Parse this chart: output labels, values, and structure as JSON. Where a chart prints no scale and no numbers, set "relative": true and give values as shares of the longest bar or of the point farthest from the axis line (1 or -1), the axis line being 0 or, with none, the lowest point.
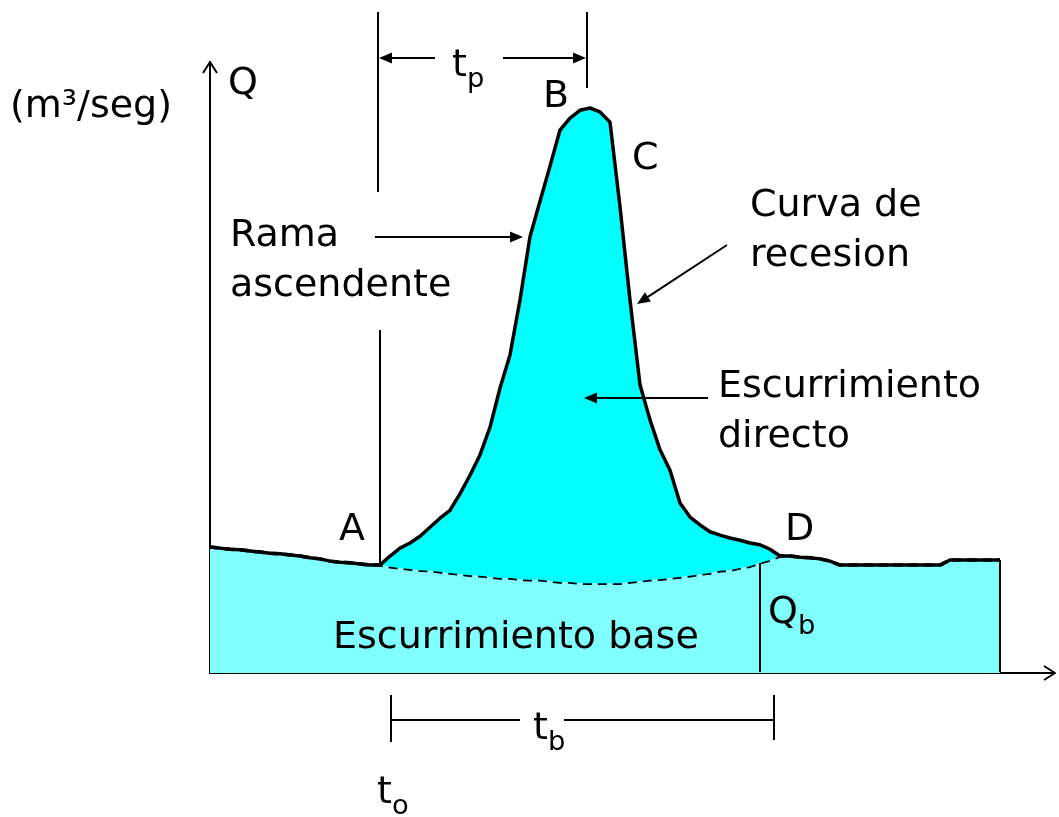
{
  "chart_data": {
    "type": "area",
    "relative": true,
    "stacked": true,
    "ylabel": "Q",
    "categories": [
      null,
      null,
      null,
      null,
      null,
      null,
      null,
      null,
      null,
      null,
      null,
      null,
      null,
      null,
      null,
      null,
      null,
      null,
      null,
      null,
      null,
      null,
      null,
      null,
      null,
      null,
      null,
      null,
      null,
      null,
      null,
      null,
      null,
      null,
      null,
      null,
      null,
      null,
      null,
      null,
      null,
      null,
      null,
      null,
      null,
      null,
      null,
      null,
      null,
      null,
      null,
      null,
      null,
      null,
      null,
      null,
      null,
      null,
      null,
      null,
      null,
      null,
      null,
      null,
      null,
      null,
      null,
      null,
      null,
      null,
      null,
      null,
      null,
      null,
      null,
      null,
      null,
      null,
      null,
      null,
      null,
      null,
      null,
      null,
      null
    ],
    "series": [
      {
        "name": "Escurrimiento base",
        "color": "#80ffff",
        "line_style": "dashed",
        "values": [
          0.223,
          0.221,
          0.219,
          0.218,
          0.216,
          0.214,
          0.212,
          0.211,
          0.209,
          0.207,
          0.204,
          0.202,
          0.198,
          0.196,
          0.195,
          0.193,
          0.191,
          0.191,
          0.188,
          0.186,
          0.184,
          0.182,
          0.181,
          0.179,
          0.177,
          0.175,
          0.173,
          0.172,
          0.17,
          0.168,
          0.168,
          0.166,
          0.165,
          0.165,
          0.163,
          0.161,
          0.161,
          0.159,
          0.159,
          0.159,
          0.159,
          0.159,
          0.161,
          0.163,
          0.165,
          0.166,
          0.168,
          0.17,
          0.172,
          0.175,
          0.177,
          0.181,
          0.182,
          0.186,
          0.189,
          0.195,
          0.2,
          0.207,
          0.207,
          0.205,
          0.204,
          0.202,
          0.198,
          0.191,
          0.191,
          0.191,
          0.191,
          0.191,
          0.191,
          0.191,
          0.191,
          0.191,
          0.191,
          0.191,
          0.2,
          0.2,
          0.2,
          0.2,
          0.2,
          0.2,
          null,
          null,
          null,
          null,
          null
        ]
      },
      {
        "color": "#00ffff",
        "values": [
          0,
          0,
          0,
          0,
          0,
          0,
          0,
          0,
          0,
          0,
          0,
          0,
          0,
          0,
          0,
          0,
          0,
          0,
          0.019,
          0.035,
          0.046,
          0.06,
          0.077,
          0.095,
          0.111,
          0.142,
          0.177,
          0.214,
          0.265,
          0.336,
          0.395,
          0.494,
          0.607,
          0.67,
          0.734,
          0.8,
          0.821,
          0.837,
          0.841,
          0.834,
          0.816,
          0.666,
          0.499,
          0.347,
          0.283,
          0.229,
          0.191,
          0.131,
          0.104,
          0.087,
          0.073,
          0.063,
          0.057,
          0.049,
          0.041,
          0.032,
          0.019,
          0,
          0,
          0,
          0,
          0,
          0,
          0,
          0,
          0,
          0,
          0,
          0,
          0,
          0,
          0,
          0,
          0,
          0,
          0,
          0,
          0,
          0,
          0,
          null,
          null,
          null,
          null,
          null
        ]
      }
    ],
    "annotations": [
      "t$_{p}$",
      "B",
      "C",
      "(m³/seg)",
      "Rama ascendente",
      "Curva de recesion",
      "Escurrimiento directo",
      "A",
      "D",
      "Q$_{b}$",
      "t$_{b}$",
      "t$_{o}$"
    ],
    "line_style": "solid",
    "marker": "none",
    "legend": false,
    "grid": false
  }
}
